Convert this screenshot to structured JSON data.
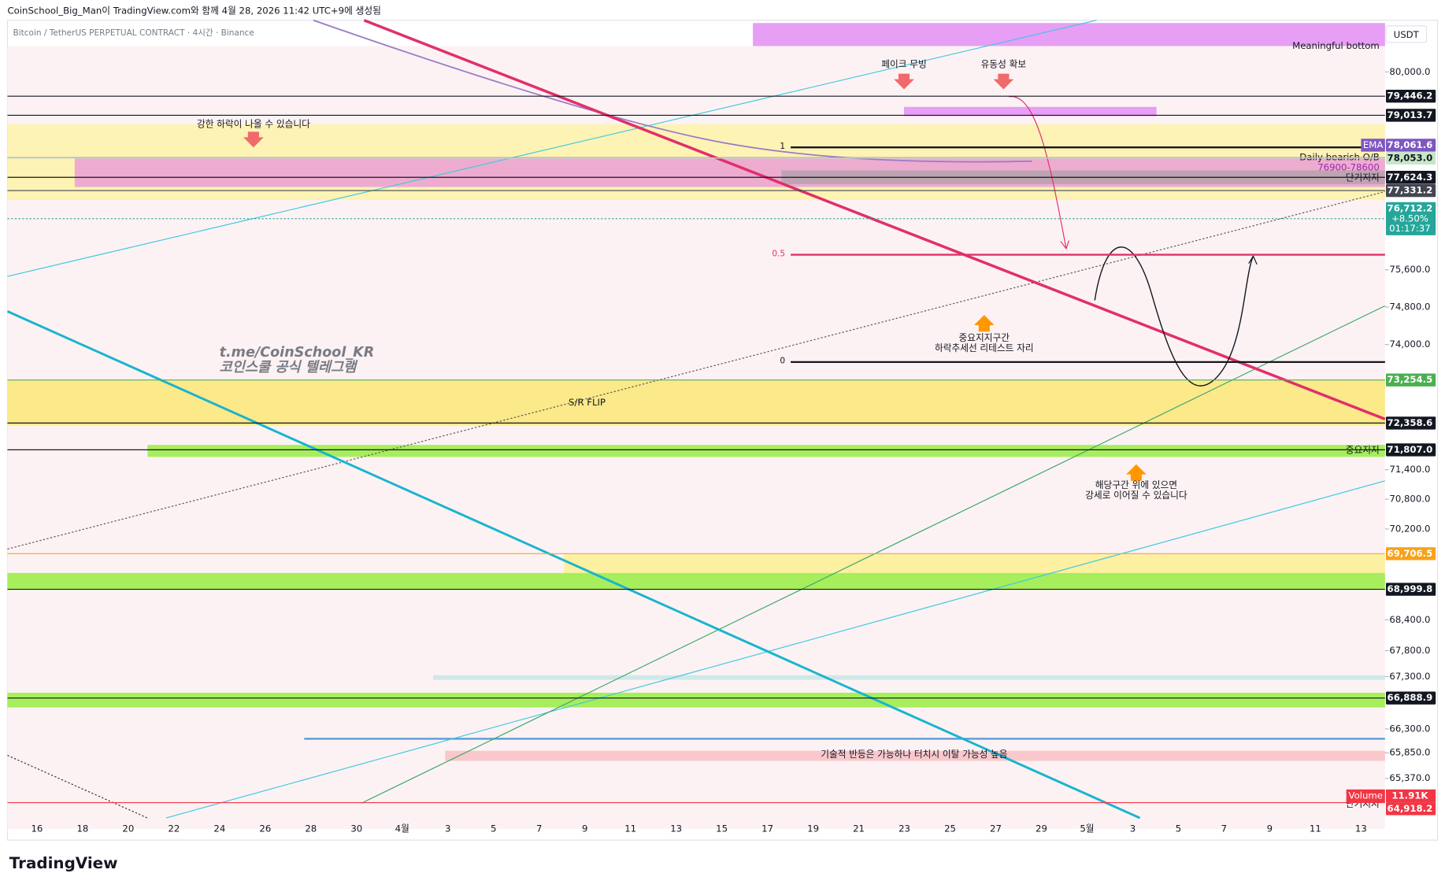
{
  "header": {
    "caption": "CoinSchool_Big_Man이 TradingView.com와 함께 4월 28, 2026 11:42 UTC+9에 생성됨",
    "symbol": "Bitcoin / TetherUS PERPETUAL CONTRACT · 4시간 · Binance",
    "brand": "TradingView"
  },
  "price_axis": {
    "currency": "USDT",
    "scale": "log",
    "ylim": [
      64294,
      81189
    ],
    "yticks": [
      {
        "value": 80000,
        "label": "80,000.0"
      },
      {
        "value": 75600,
        "label": "75,600.0"
      },
      {
        "value": 74800,
        "label": "74,800.0"
      },
      {
        "value": 74000,
        "label": "74,000.0"
      },
      {
        "value": 71400,
        "label": "71,400.0"
      },
      {
        "value": 70800,
        "label": "70,800.0"
      },
      {
        "value": 70200,
        "label": "70,200.0"
      },
      {
        "value": 68400,
        "label": "68,400.0"
      },
      {
        "value": 67800,
        "label": "67,800.0"
      },
      {
        "value": 67300,
        "label": "67,300.0"
      },
      {
        "value": 66300,
        "label": "66,300.0"
      },
      {
        "value": 65850,
        "label": "65,850.0"
      },
      {
        "value": 65370,
        "label": "65,370.0"
      }
    ]
  },
  "time_axis": {
    "labels": [
      "16",
      "18",
      "20",
      "22",
      "24",
      "26",
      "28",
      "30",
      "4월",
      "3",
      "5",
      "7",
      "9",
      "11",
      "13",
      "15",
      "17",
      "19",
      "21",
      "23",
      "25",
      "27",
      "29",
      "5월",
      "3",
      "5",
      "7",
      "9",
      "11",
      "13"
    ]
  },
  "price_levels": [
    {
      "value": 79446.2,
      "label": "79,446.2",
      "color": "#131722"
    },
    {
      "value": 79013.7,
      "label": "79,013.7",
      "color": "#131722"
    },
    {
      "value": 78061.6,
      "label": "78,061.6",
      "tag": "EMA",
      "color": "#7e57c2"
    },
    {
      "value": 78053.0,
      "label": "78,053.0",
      "color": "#c8e6c9",
      "text_color": "#131722"
    },
    {
      "value": 77624.3,
      "label": "77,624.3",
      "color": "#131722"
    },
    {
      "value": 77331.2,
      "label": "77,331.2",
      "color": "#434651"
    },
    {
      "value": 76712.2,
      "label": "76,712.2",
      "change": "+8.50%",
      "countdown": "01:17:37",
      "color": "#26a69a"
    },
    {
      "value": 73254.5,
      "label": "73,254.5",
      "color": "#4caf50"
    },
    {
      "value": 72358.6,
      "label": "72,358.6",
      "color": "#131722"
    },
    {
      "value": 71807.0,
      "label": "71,807.0",
      "color": "#131722"
    },
    {
      "value": 69706.5,
      "label": "69,706.5",
      "color": "#f7a21b"
    },
    {
      "value": 68999.8,
      "label": "68,999.8",
      "color": "#131722"
    },
    {
      "value": 66888.9,
      "label": "66,888.9",
      "color": "#131722"
    },
    {
      "value": 64918.2,
      "label": "64,918.2",
      "color": "#f23645"
    }
  ],
  "volume": {
    "name": "Volume",
    "value": 11910,
    "label": "11.91K",
    "color": "#f23645"
  },
  "fib": [
    1,
    0.5,
    0
  ],
  "watermark": [
    "t.me/CoinSchool_KR",
    "코인스쿨 공식 텔레그램"
  ],
  "annotations": {
    "fake_move": "페이크 무빙",
    "liquidity": "유동성 확보",
    "strong_drop": "강한 하락이 나올 수 있습니다",
    "sr_flip": "S/R FLIP",
    "key_zone": "중요지지구간",
    "retest": "하락추세선 리테스트 자리",
    "key_support": "중요지지",
    "above_zone": "해당구간 위에 있으면",
    "bullish": "강세로 이어질 수 있습니다",
    "bounce": "기술적 반등은 가능하나 터치시 이탈 가능성 높음",
    "meaningful_bottom": "Meaningful bottom",
    "daily_ob": "Daily bearish O/B",
    "ob_range": "76900-78600",
    "short_support": "단기지지",
    "short_support_low": "단기지지"
  }
}
